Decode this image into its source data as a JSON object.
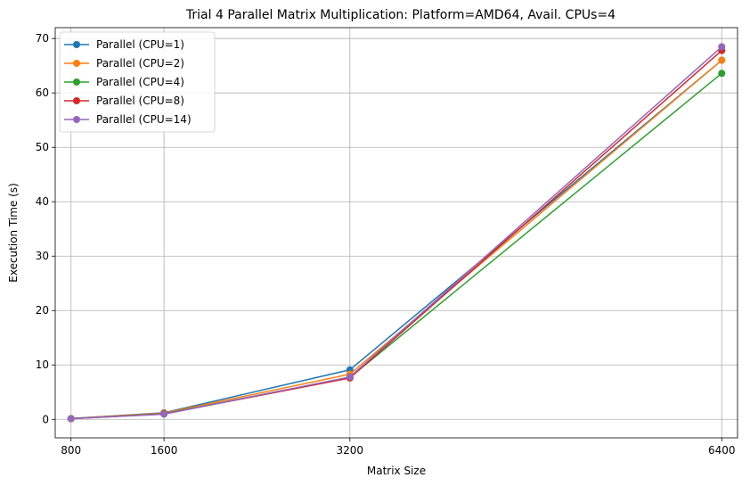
{
  "chart_data": {
    "type": "line",
    "title": "Trial 4 Parallel Matrix Multiplication: Platform=AMD64, Avail. CPUs=4",
    "xlabel": "Matrix Size",
    "ylabel": "Execution Time (s)",
    "x": [
      800,
      1600,
      3200,
      6400
    ],
    "xlim": [
      664,
      6536
    ],
    "ylim": [
      -3.4,
      72
    ],
    "xticks": [
      800,
      1600,
      3200,
      6400
    ],
    "yticks": [
      0,
      10,
      20,
      30,
      40,
      50,
      60,
      70
    ],
    "grid": true,
    "legend_position": "top-left",
    "series": [
      {
        "name": "Parallel (CPU=1)",
        "color": "#1f77b4",
        "values": [
          0.15,
          1.2,
          9.1,
          66.0
        ]
      },
      {
        "name": "Parallel (CPU=2)",
        "color": "#ff7f0e",
        "values": [
          0.14,
          1.15,
          8.3,
          66.0
        ]
      },
      {
        "name": "Parallel (CPU=4)",
        "color": "#2ca02c",
        "values": [
          0.13,
          1.05,
          7.7,
          63.6
        ]
      },
      {
        "name": "Parallel (CPU=8)",
        "color": "#d62728",
        "values": [
          0.12,
          1.0,
          7.6,
          67.8
        ]
      },
      {
        "name": "Parallel (CPU=14)",
        "color": "#9467bd",
        "values": [
          0.12,
          0.95,
          7.8,
          68.5
        ]
      }
    ]
  }
}
